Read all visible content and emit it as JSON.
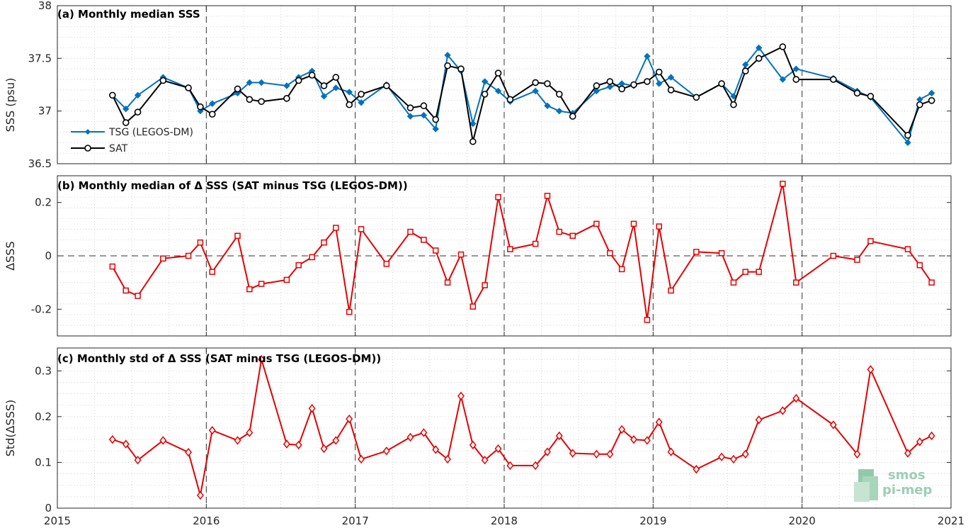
{
  "colors": {
    "tsg": "#0072BD",
    "sat": "#000000",
    "delta": "#E60000",
    "logo": "#7fbf9c"
  },
  "logo": {
    "line1": "smos",
    "line2": "pi-mep",
    "icon": "smos-pi-mep-logo"
  },
  "x_ticks": [
    "2015",
    "2016",
    "2017",
    "2018",
    "2019",
    "2020",
    "2021"
  ],
  "chart_data": [
    {
      "type": "line",
      "title": "(a) Monthly median SSS",
      "ylabel": "SSS (psu)",
      "xlabel": "",
      "xlim": [
        2015,
        2021
      ],
      "ylim": [
        36.5,
        38
      ],
      "yticks": [
        "36.5",
        "37",
        "37.5",
        "38"
      ],
      "grid": true,
      "legend_placement": "lower-left",
      "x": [
        2015.37,
        2015.46,
        2015.54,
        2015.71,
        2015.88,
        2015.96,
        2016.04,
        2016.21,
        2016.29,
        2016.37,
        2016.54,
        2016.62,
        2016.71,
        2016.79,
        2016.87,
        2016.96,
        2017.04,
        2017.21,
        2017.37,
        2017.46,
        2017.54,
        2017.62,
        2017.71,
        2017.79,
        2017.87,
        2017.96,
        2018.04,
        2018.21,
        2018.29,
        2018.37,
        2018.46,
        2018.62,
        2018.71,
        2018.79,
        2018.87,
        2018.96,
        2019.04,
        2019.12,
        2019.29,
        2019.46,
        2019.54,
        2019.62,
        2019.71,
        2019.87,
        2019.96,
        2020.21,
        2020.37,
        2020.46,
        2020.71,
        2020.79,
        2020.87
      ],
      "series": [
        {
          "name": "TSG (LEGOS-DM)",
          "marker": "filled-diamond",
          "values": [
            37.15,
            37.02,
            37.15,
            37.32,
            37.22,
            37.0,
            37.07,
            37.17,
            37.27,
            37.27,
            37.24,
            37.32,
            37.38,
            37.14,
            37.22,
            37.18,
            37.08,
            37.25,
            36.95,
            36.96,
            36.83,
            37.53,
            37.38,
            36.88,
            37.28,
            37.19,
            37.09,
            37.19,
            37.05,
            37.0,
            36.98,
            37.19,
            37.23,
            37.26,
            37.24,
            37.52,
            37.26,
            37.32,
            37.13,
            37.26,
            37.14,
            37.44,
            37.6,
            37.3,
            37.4,
            37.31,
            37.19,
            37.13,
            36.7,
            37.11,
            37.17
          ]
        },
        {
          "name": "SAT",
          "marker": "open-circle",
          "values": [
            37.15,
            36.89,
            36.99,
            37.29,
            37.22,
            37.04,
            36.97,
            37.21,
            37.11,
            37.09,
            37.12,
            37.29,
            37.34,
            37.24,
            37.32,
            37.06,
            37.16,
            37.24,
            37.03,
            37.05,
            36.92,
            37.43,
            37.4,
            36.71,
            37.16,
            37.36,
            37.11,
            37.27,
            37.26,
            37.16,
            36.95,
            37.24,
            37.28,
            37.21,
            37.25,
            37.28,
            37.37,
            37.2,
            37.13,
            37.26,
            37.06,
            37.38,
            37.5,
            37.61,
            37.3,
            37.3,
            37.17,
            37.14,
            36.77,
            37.06,
            37.1
          ]
        }
      ]
    },
    {
      "type": "line",
      "title": "(b) Monthly median of Δ SSS (SAT minus TSG (LEGOS-DM))",
      "ylabel": "ΔSSS",
      "xlabel": "",
      "xlim": [
        2015,
        2021
      ],
      "ylim": [
        -0.3,
        0.3
      ],
      "yticks": [
        "-0.2",
        "0",
        "0.2"
      ],
      "grid": true,
      "zero_line": true,
      "x": [
        2015.37,
        2015.46,
        2015.54,
        2015.71,
        2015.88,
        2015.96,
        2016.04,
        2016.21,
        2016.29,
        2016.37,
        2016.54,
        2016.62,
        2016.71,
        2016.79,
        2016.87,
        2016.96,
        2017.04,
        2017.21,
        2017.37,
        2017.46,
        2017.54,
        2017.62,
        2017.71,
        2017.79,
        2017.87,
        2017.96,
        2018.04,
        2018.21,
        2018.29,
        2018.37,
        2018.46,
        2018.62,
        2018.71,
        2018.79,
        2018.87,
        2018.96,
        2019.04,
        2019.12,
        2019.29,
        2019.46,
        2019.54,
        2019.62,
        2019.71,
        2019.87,
        2019.96,
        2020.21,
        2020.37,
        2020.46,
        2020.71,
        2020.79,
        2020.87
      ],
      "series": [
        {
          "name": "",
          "marker": "open-square",
          "values": [
            -0.04,
            -0.13,
            -0.15,
            -0.01,
            0.0,
            0.05,
            -0.06,
            0.075,
            -0.125,
            -0.105,
            -0.09,
            -0.035,
            -0.005,
            0.05,
            0.105,
            -0.21,
            0.1,
            -0.03,
            0.09,
            0.06,
            0.02,
            -0.1,
            0.005,
            -0.19,
            -0.11,
            0.22,
            0.025,
            0.045,
            0.225,
            0.09,
            0.075,
            0.12,
            0.01,
            -0.05,
            0.12,
            -0.24,
            0.11,
            -0.13,
            0.015,
            0.01,
            -0.1,
            -0.06,
            -0.06,
            0.27,
            -0.1,
            0.0,
            -0.015,
            0.055,
            0.025,
            -0.035,
            -0.1
          ]
        }
      ]
    },
    {
      "type": "line",
      "title": "(c) Monthly std of Δ SSS (SAT minus TSG (LEGOS-DM))",
      "ylabel": "Std(ΔSSS)",
      "xlabel": "",
      "xlim": [
        2015,
        2021
      ],
      "ylim": [
        0,
        0.35
      ],
      "yticks": [
        "0",
        "0.1",
        "0.2",
        "0.3"
      ],
      "grid": true,
      "x": [
        2015.37,
        2015.46,
        2015.54,
        2015.71,
        2015.88,
        2015.96,
        2016.04,
        2016.21,
        2016.29,
        2016.37,
        2016.54,
        2016.62,
        2016.71,
        2016.79,
        2016.87,
        2016.96,
        2017.04,
        2017.21,
        2017.37,
        2017.46,
        2017.54,
        2017.62,
        2017.71,
        2017.79,
        2017.87,
        2017.96,
        2018.04,
        2018.21,
        2018.29,
        2018.37,
        2018.46,
        2018.62,
        2018.71,
        2018.79,
        2018.87,
        2018.96,
        2019.04,
        2019.12,
        2019.29,
        2019.46,
        2019.54,
        2019.62,
        2019.71,
        2019.87,
        2019.96,
        2020.21,
        2020.37,
        2020.46,
        2020.71,
        2020.79,
        2020.87
      ],
      "series": [
        {
          "name": "",
          "marker": "open-diamond",
          "values": [
            0.15,
            0.14,
            0.105,
            0.148,
            0.122,
            0.028,
            0.17,
            0.148,
            0.165,
            0.325,
            0.14,
            0.138,
            0.218,
            0.13,
            0.148,
            0.195,
            0.107,
            0.125,
            0.155,
            0.165,
            0.128,
            0.107,
            0.245,
            0.138,
            0.105,
            0.13,
            0.093,
            0.093,
            0.123,
            0.158,
            0.12,
            0.118,
            0.118,
            0.172,
            0.15,
            0.148,
            0.188,
            0.123,
            0.085,
            0.112,
            0.107,
            0.118,
            0.193,
            0.213,
            0.24,
            0.182,
            0.118,
            0.303,
            0.12,
            0.145,
            0.158
          ]
        }
      ]
    }
  ]
}
